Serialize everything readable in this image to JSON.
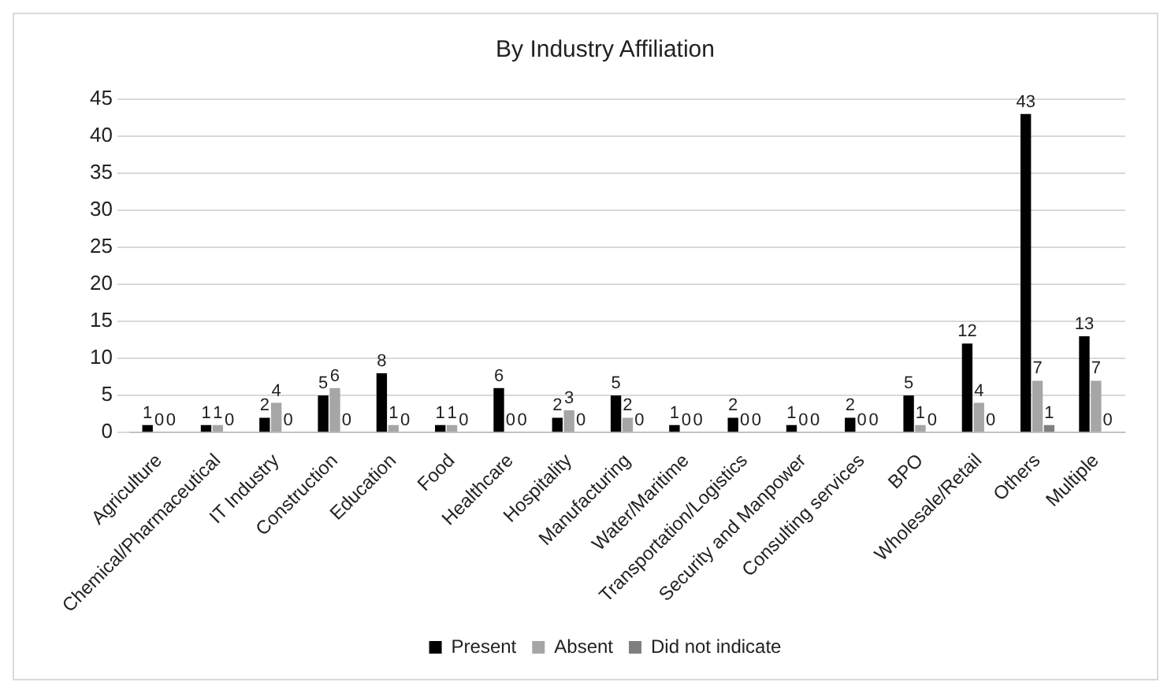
{
  "chart_data": {
    "type": "bar",
    "title": "By Industry Affiliation",
    "categories": [
      "Agriculture",
      "Chemical/Pharmaceutical",
      "IT Industry",
      "Construction",
      "Education",
      "Food",
      "Healthcare",
      "Hospitality",
      "Manufacturing",
      "Water/Maritime",
      "Transportation/Logistics",
      "Security and Manpower",
      "Consulting services",
      "BPO",
      "Wholesale/Retail",
      "Others",
      "Multiple"
    ],
    "series": [
      {
        "name": "Present",
        "color": "#000000",
        "values": [
          1,
          1,
          2,
          5,
          8,
          1,
          6,
          2,
          5,
          1,
          2,
          1,
          2,
          5,
          12,
          43,
          13
        ]
      },
      {
        "name": "Absent",
        "color": "#a6a6a6",
        "values": [
          0,
          1,
          4,
          6,
          1,
          1,
          0,
          3,
          2,
          0,
          0,
          0,
          0,
          1,
          4,
          7,
          7
        ]
      },
      {
        "name": "Did not indicate",
        "color": "#7f7f7f",
        "values": [
          0,
          0,
          0,
          0,
          0,
          0,
          0,
          0,
          0,
          0,
          0,
          0,
          0,
          0,
          0,
          1,
          0
        ]
      }
    ],
    "ylim": [
      0,
      45
    ],
    "yticks": [
      0,
      5,
      10,
      15,
      20,
      25,
      30,
      35,
      40,
      45
    ],
    "grid": "y",
    "legend": "bottom",
    "data_labels": true
  }
}
